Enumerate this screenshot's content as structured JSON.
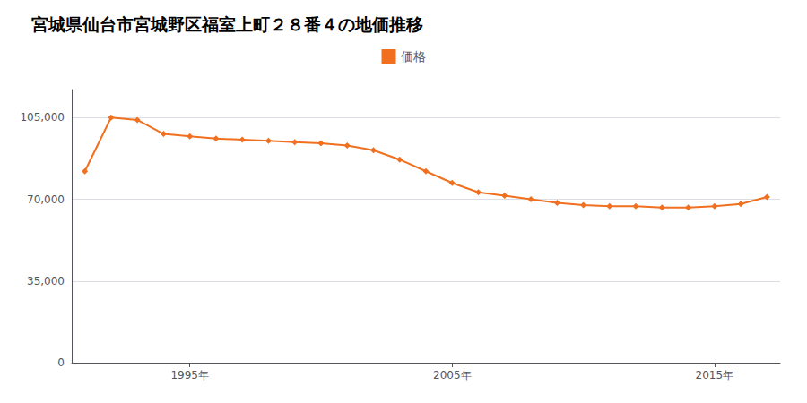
{
  "chart_data": {
    "type": "line",
    "title": "宮城県仙台市宮城野区福室上町２８番４の地価推移",
    "x": [
      1991,
      1992,
      1993,
      1994,
      1995,
      1996,
      1997,
      1998,
      1999,
      2000,
      2001,
      2002,
      2003,
      2004,
      2005,
      2006,
      2007,
      2008,
      2009,
      2010,
      2011,
      2012,
      2013,
      2014,
      2015,
      2016,
      2017
    ],
    "series": [
      {
        "name": "価格",
        "color": "#f07020",
        "marker": "diamond",
        "values": [
          82000,
          105000,
          104000,
          98000,
          97000,
          96000,
          95500,
          95000,
          94500,
          94000,
          93000,
          91000,
          87000,
          82000,
          77000,
          73000,
          71500,
          70000,
          68500,
          67500,
          67000,
          67000,
          66500,
          66500,
          67000,
          68000,
          71000
        ]
      }
    ],
    "xlim": [
      1990.5,
      2017.5
    ],
    "xticks": [
      {
        "value": 1995,
        "label": "1995年"
      },
      {
        "value": 2005,
        "label": "2005年"
      },
      {
        "value": 2015,
        "label": "2015年"
      }
    ],
    "ylim": [
      0,
      117000
    ],
    "yticks": [
      0,
      {
        "value": 35000,
        "label": "35,000"
      },
      {
        "value": 70000,
        "label": "70,000"
      },
      {
        "value": 105000,
        "label": "105,000"
      }
    ],
    "grid": true,
    "legend": "top"
  }
}
